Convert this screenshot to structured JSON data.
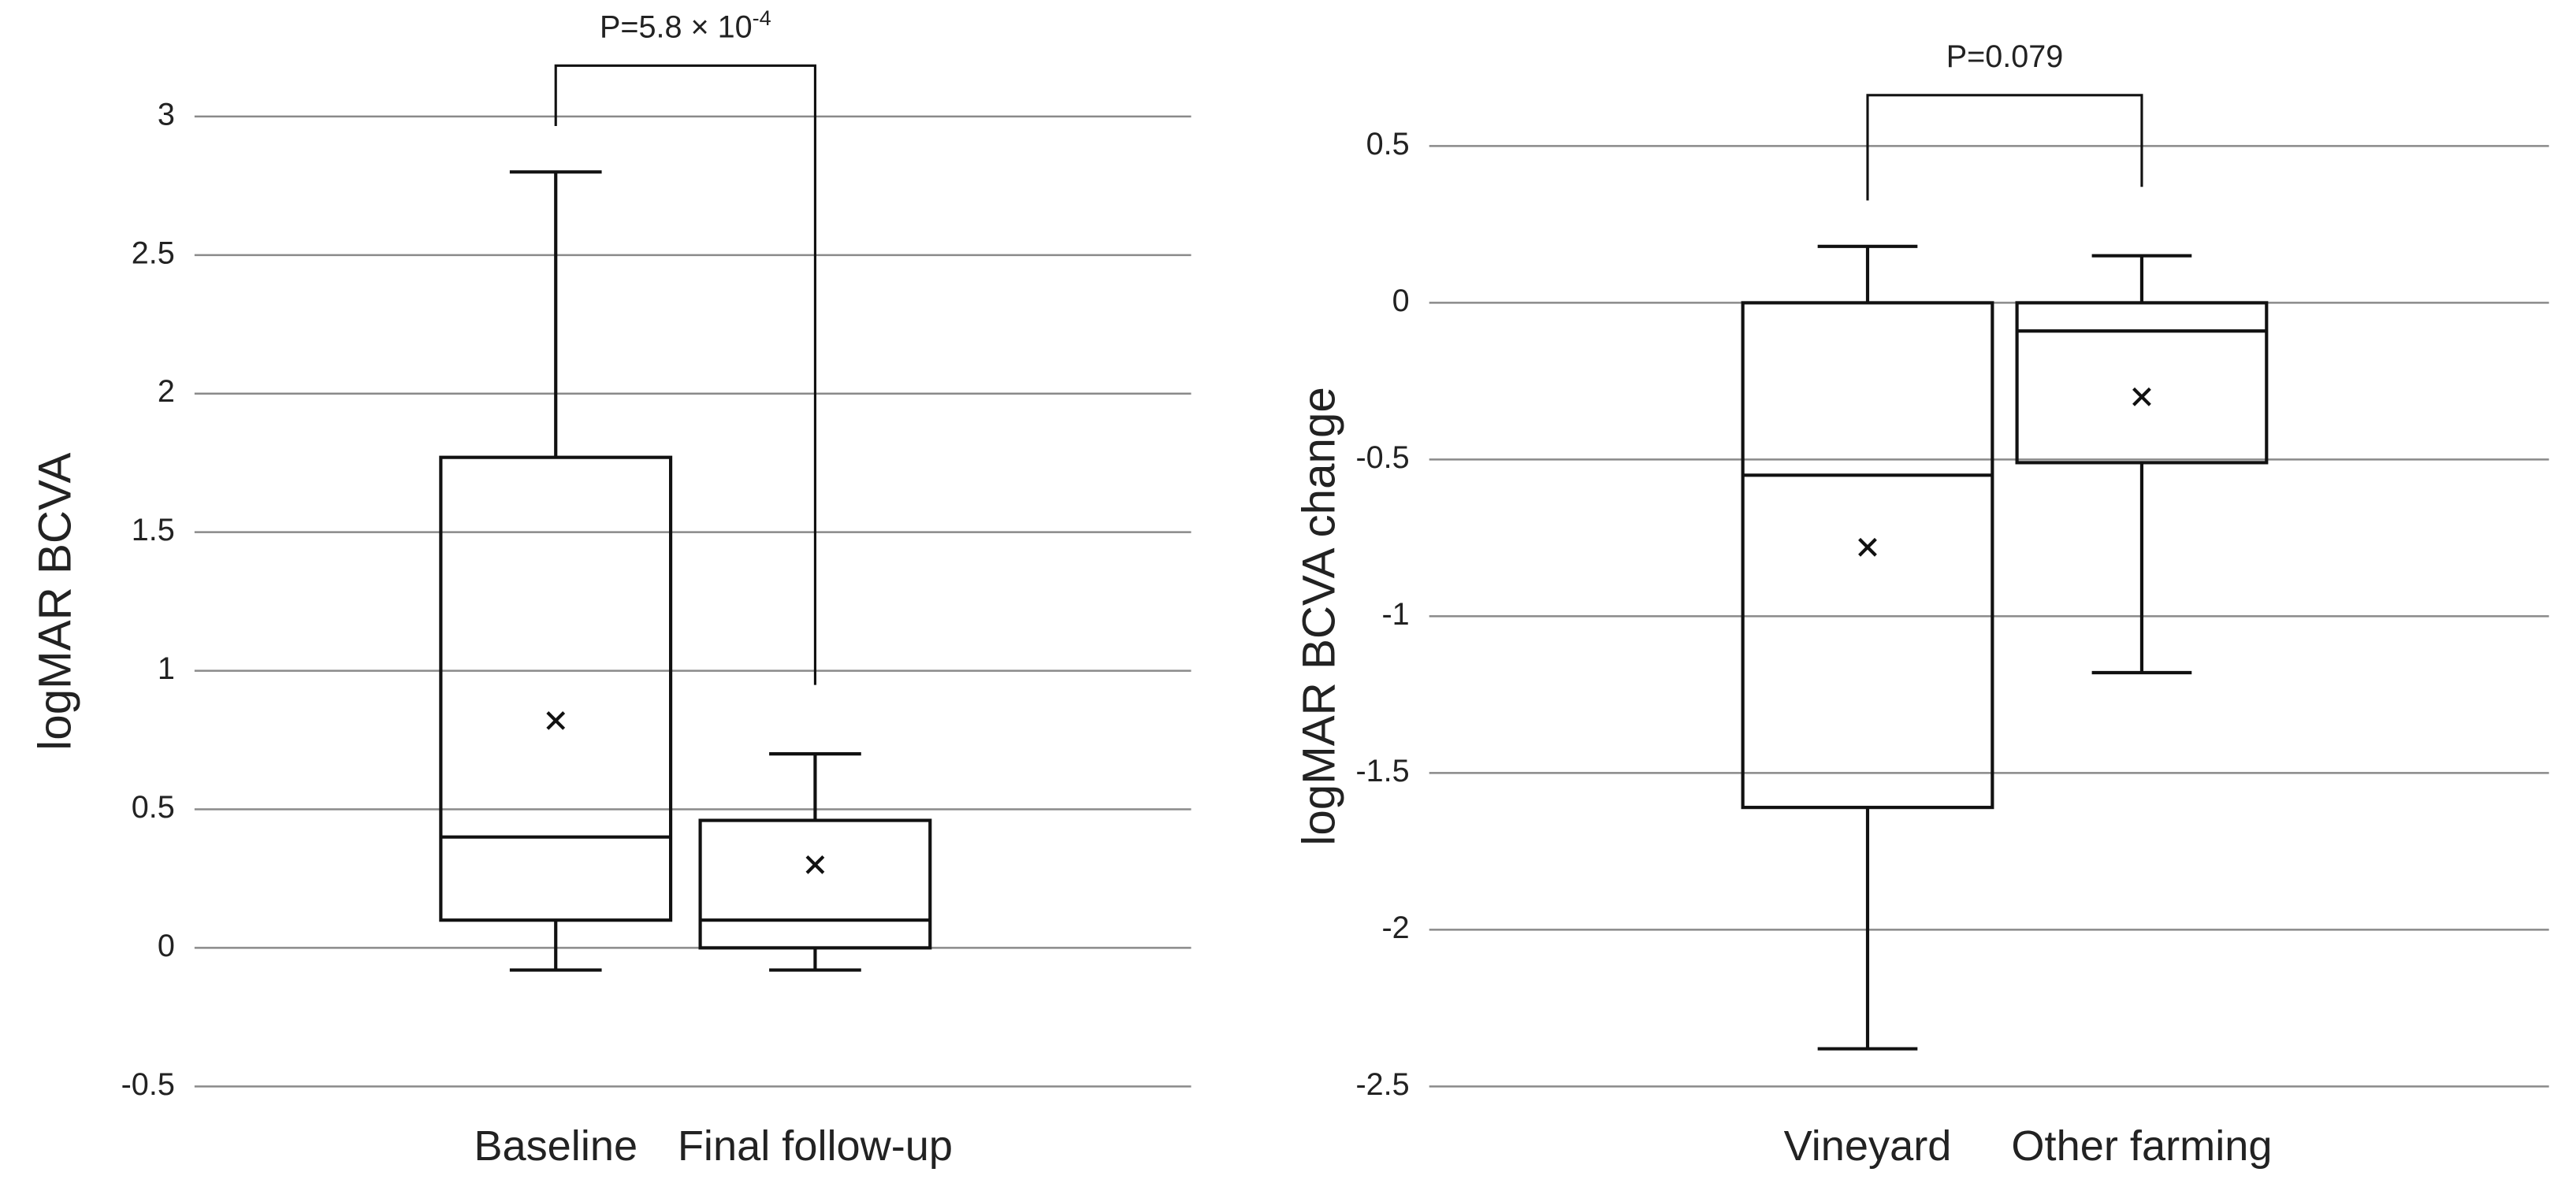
{
  "chart_data": [
    {
      "type": "box",
      "y_label": "logMAR BCVA",
      "categories": [
        "Baseline",
        "Final follow-up"
      ],
      "boxes": [
        {
          "min": -0.08,
          "q1": 0.1,
          "median": 0.4,
          "q3": 1.77,
          "max": 2.8,
          "mean": 0.82
        },
        {
          "min": -0.08,
          "q1": 0,
          "median": 0.1,
          "q3": 0.46,
          "max": 0.7,
          "mean": 0.3
        }
      ],
      "ylim": [
        -0.5,
        3
      ],
      "yticks": [
        -0.5,
        0,
        0.5,
        1,
        1.5,
        2,
        2.5,
        3
      ],
      "grid": true,
      "annotation": {
        "text": "P=5.8 × 10",
        "superscript": "-4"
      }
    },
    {
      "type": "box",
      "y_label": "logMAR BCVA change",
      "categories": [
        "Vineyard",
        "Other farming"
      ],
      "boxes": [
        {
          "min": -2.38,
          "q1": -1.61,
          "median": -0.55,
          "q3": 0,
          "max": 0.18,
          "mean": -0.78
        },
        {
          "min": -1.18,
          "q1": -0.51,
          "median": -0.09,
          "q3": 0,
          "max": 0.15,
          "mean": -0.3
        }
      ],
      "ylim": [
        -2.5,
        0.5
      ],
      "yticks": [
        -2.5,
        -2,
        -1.5,
        -1,
        -0.5,
        0,
        0.5
      ],
      "grid": true,
      "annotation": {
        "text": "P=0.079"
      }
    }
  ]
}
